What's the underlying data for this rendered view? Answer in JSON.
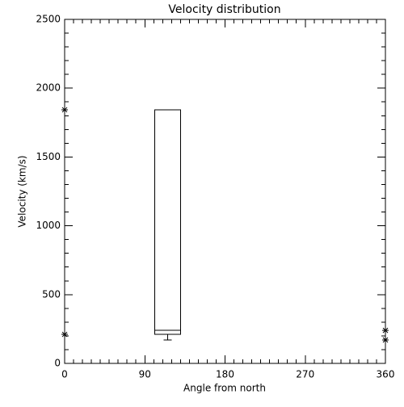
{
  "chart_data": {
    "type": "box",
    "title": "Velocity distribution",
    "x_label": "Angle from north",
    "y_label": "Velocity (km/s)",
    "xlim": [
      0,
      360
    ],
    "ylim": [
      0,
      2500
    ],
    "xticks": [
      0,
      90,
      180,
      270,
      360
    ],
    "yticks": [
      0,
      500,
      1000,
      1500,
      2000,
      2500
    ],
    "boxes": [
      {
        "x_start": 101,
        "x_end": 130,
        "q1": 211,
        "median": 240,
        "q3": 1843,
        "whisker_low": 170
      }
    ],
    "points": {
      "x": [
        0,
        0,
        360,
        360
      ],
      "y": [
        1843,
        211,
        240,
        170
      ]
    }
  }
}
